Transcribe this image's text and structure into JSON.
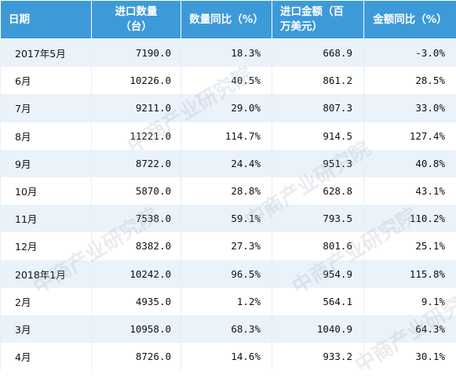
{
  "table": {
    "headers": [
      "日期",
      "进口数量（台）",
      "数量同比（%）",
      "进口金额（百万美元）",
      "金额同比（%）"
    ],
    "header_lines": [
      [
        "日期"
      ],
      [
        "进口数量",
        "（台）"
      ],
      [
        "数量同比（%）"
      ],
      [
        "进口金额（百",
        "万美元）"
      ],
      [
        "金额同比（%）"
      ]
    ],
    "rows": [
      [
        "2017年5月",
        "7190.0",
        "18.3%",
        "668.9",
        "-3.0%"
      ],
      [
        "6月",
        "10226.0",
        "40.5%",
        "861.2",
        "28.5%"
      ],
      [
        "7月",
        "9211.0",
        "29.0%",
        "807.3",
        "33.0%"
      ],
      [
        "8月",
        "11221.0",
        "114.7%",
        "914.5",
        "127.4%"
      ],
      [
        "9月",
        "8722.0",
        "24.4%",
        "951.3",
        "40.8%"
      ],
      [
        "10月",
        "5870.0",
        "28.8%",
        "628.8",
        "43.1%"
      ],
      [
        "11月",
        "7538.0",
        "59.1%",
        "793.5",
        "110.2%"
      ],
      [
        "12月",
        "8382.0",
        "27.3%",
        "801.6",
        "25.1%"
      ],
      [
        "2018年1月",
        "10242.0",
        "96.5%",
        "954.9",
        "115.8%"
      ],
      [
        "2月",
        "4935.0",
        "1.2%",
        "564.1",
        "9.1%"
      ],
      [
        "3月",
        "10958.0",
        "68.3%",
        "1040.9",
        "64.3%"
      ],
      [
        "4月",
        "8726.0",
        "14.6%",
        "933.2",
        "30.1%"
      ]
    ]
  },
  "watermark": {
    "text": "中商产业研究院"
  },
  "colors": {
    "header_bg": "#3d9ad9",
    "row_alt": "#eaf2fa",
    "row": "#ffffff"
  }
}
